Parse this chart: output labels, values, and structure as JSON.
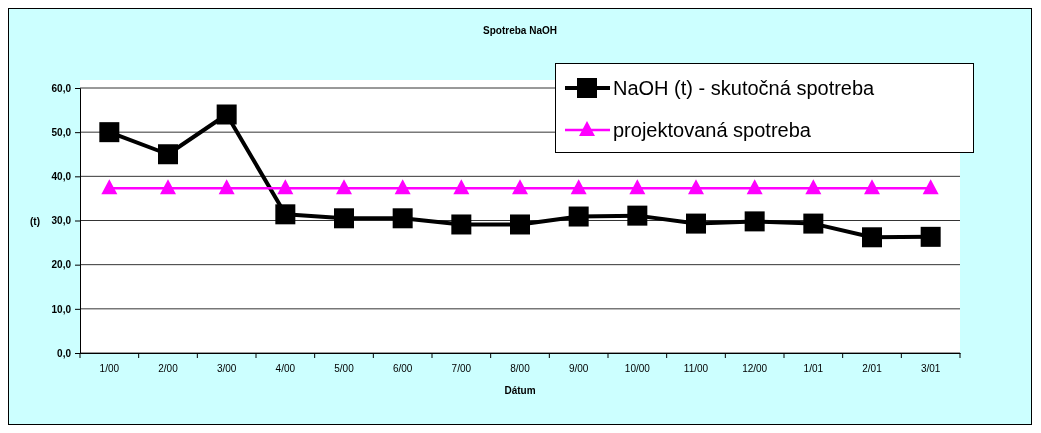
{
  "chart_data": {
    "type": "line",
    "title": "Spotreba NaOH",
    "xlabel": "Dátum",
    "ylabel": "(t)",
    "categories": [
      "1/00",
      "2/00",
      "3/00",
      "4/00",
      "5/00",
      "6/00",
      "7/00",
      "8/00",
      "9/00",
      "10/00",
      "11/00",
      "12/00",
      "1/01",
      "2/01",
      "3/01"
    ],
    "series": [
      {
        "name": "NaOH (t) - skutočná spotreba",
        "color": "#000000",
        "marker": "square",
        "values": [
          50,
          45,
          54,
          31.4,
          30.5,
          30.5,
          29.1,
          29.1,
          30.9,
          31.1,
          29.3,
          29.8,
          29.3,
          26.2,
          26.3
        ]
      },
      {
        "name": "projektovaná spotreba",
        "color": "#ff00ff",
        "marker": "triangle",
        "values": [
          37.3,
          37.3,
          37.3,
          37.3,
          37.3,
          37.3,
          37.3,
          37.3,
          37.3,
          37.3,
          37.3,
          37.3,
          37.3,
          37.3,
          37.3
        ]
      }
    ],
    "ylim": [
      0,
      60
    ],
    "yticks": [
      {
        "value": 0,
        "label": "0,0"
      },
      {
        "value": 10,
        "label": "10,0"
      },
      {
        "value": 20,
        "label": "20,0"
      },
      {
        "value": 30,
        "label": "30,0"
      },
      {
        "value": 40,
        "label": "40,0"
      },
      {
        "value": 50,
        "label": "50,0"
      },
      {
        "value": 60,
        "label": "60,0"
      }
    ],
    "grid": "y",
    "legend": "top right"
  }
}
